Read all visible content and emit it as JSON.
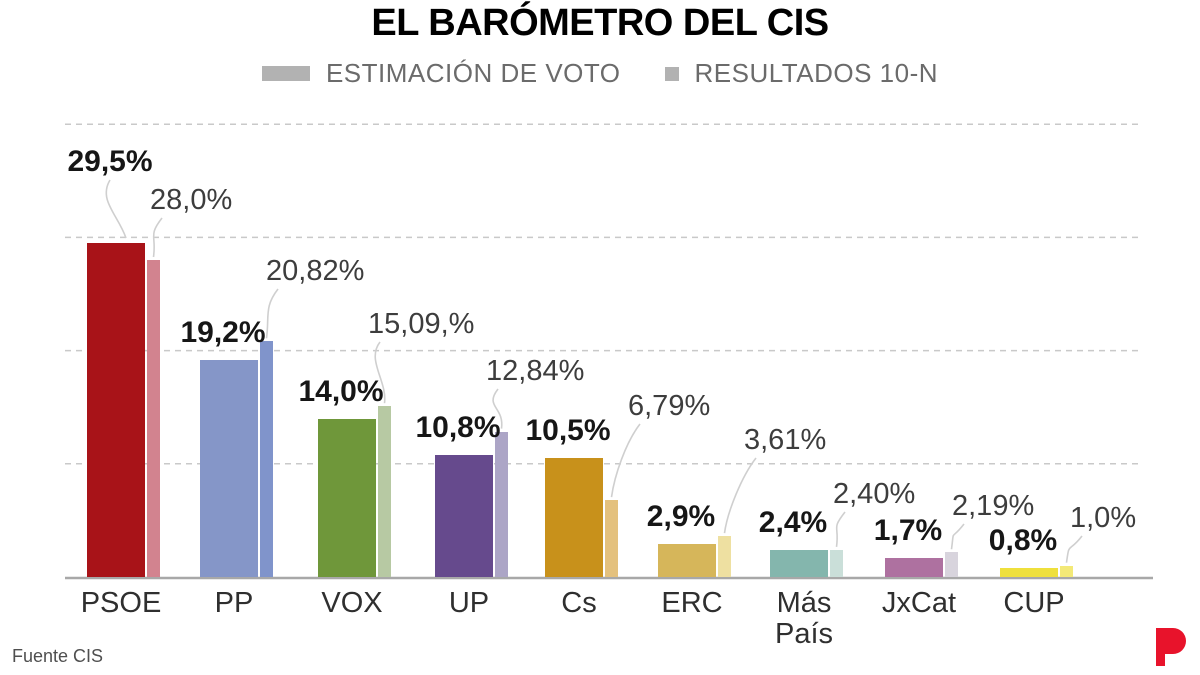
{
  "title": "EL BARÓMETRO DEL CIS",
  "legend": [
    {
      "label": "ESTIMACIÓN DE VOTO",
      "swatch": "wide-bar",
      "color": "#b2b2b2"
    },
    {
      "label": "RESULTADOS 10-N",
      "swatch": "small-square",
      "color": "#b2b2b2"
    }
  ],
  "footer": {
    "source": "Fuente CIS",
    "logo_letter": "P",
    "logo_color": "#e8132b"
  },
  "chart_data": {
    "type": "bar",
    "title": "EL BARÓMETRO DEL CIS",
    "categories": [
      "PSOE",
      "PP",
      "VOX",
      "UP",
      "Cs",
      "ERC",
      "Más País",
      "JxCat",
      "CUP"
    ],
    "series": [
      {
        "name": "ESTIMACIÓN DE VOTO",
        "values": [
          29.5,
          19.2,
          14.0,
          10.8,
          10.5,
          2.9,
          2.4,
          1.7,
          0.8
        ],
        "labels": [
          "29,5%",
          "19,2%",
          "14,0%",
          "10,8%",
          "10,5%",
          "2,9%",
          "2,4%",
          "1,7%",
          "0,8%"
        ],
        "colors": [
          "#a81318",
          "#8596c8",
          "#6f973a",
          "#664a8d",
          "#c8911b",
          "#d6b65a",
          "#84b6ad",
          "#ae71a0",
          "#efe03c"
        ]
      },
      {
        "name": "RESULTADOS 10-N",
        "values": [
          28.0,
          20.82,
          15.09,
          12.84,
          6.79,
          3.61,
          2.4,
          2.19,
          1.0
        ],
        "labels": [
          "28,0%",
          "20,82%",
          "15,09,%",
          "12,84%",
          "6,79%",
          "3,61%",
          "2,40%",
          "2,19%",
          "1,0%"
        ],
        "colors": [
          "#d2838f",
          "#8094cb",
          "#b7c9a3",
          "#aca5c6",
          "#e4c17d",
          "#eee0a1",
          "#cadfd9",
          "#d8d4dd",
          "#f3e977"
        ]
      }
    ],
    "ylim": [
      0,
      42
    ],
    "gridlines_pct": [
      10,
      20,
      30,
      40
    ],
    "grid_style": "dashed horizontal, no y-axis tick labels",
    "legend_position": "top center",
    "grid_color": "#c9c9c9",
    "axis_color": "#a8a8a8",
    "connector_color": "#cfcfcf"
  }
}
